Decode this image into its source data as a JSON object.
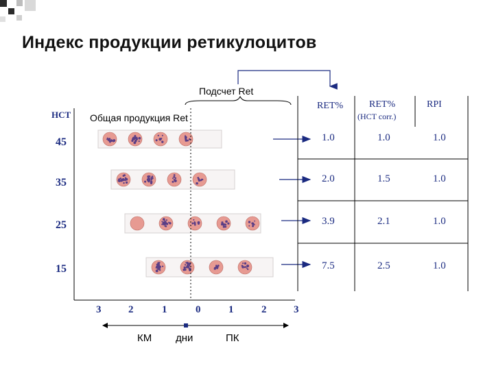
{
  "title": "Индекс продукции ретикулоцитов",
  "labels": {
    "count_ret": "Подсчет  Ret",
    "total_production": "Общая продукция Ret",
    "hct_header": "HCT",
    "km": "КМ",
    "days": "дни",
    "pk": "ПК"
  },
  "hct_levels": [
    "45",
    "35",
    "25",
    "15"
  ],
  "day_axis": [
    "3",
    "2",
    "1",
    "0",
    "1",
    "2",
    "3"
  ],
  "table": {
    "headers": [
      "RET%",
      "RET%",
      "RPI"
    ],
    "subheader": "(HCT corr.)",
    "rows": [
      [
        "1.0",
        "1.0",
        "1.0"
      ],
      [
        "2.0",
        "1.5",
        "1.0"
      ],
      [
        "3.9",
        "2.1",
        "1.0"
      ],
      [
        "7.5",
        "2.5",
        "1.0"
      ]
    ]
  },
  "colors": {
    "deco_dark": "#2b2b2b",
    "deco_light": "#cfcfcf",
    "cell_pink": "#e79a92",
    "cell_purple": "#5a3e86"
  }
}
